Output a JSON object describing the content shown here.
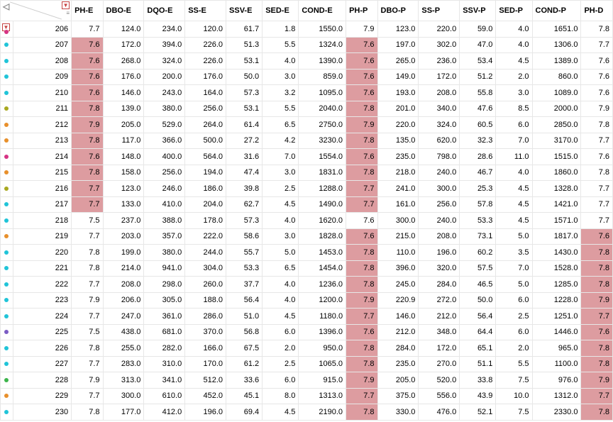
{
  "columns": [
    "PH-E",
    "DBO-E",
    "DQO-E",
    "SS-E",
    "SSV-E",
    "SED-E",
    "COND-E",
    "PH-P",
    "DBO-P",
    "SS-P",
    "SSV-P",
    "SED-P",
    "COND-P",
    "PH-D"
  ],
  "colWidths": {
    "marker": 16,
    "rowid": 74,
    "PH-E": 40,
    "DBO-E": 52,
    "DQO-E": 52,
    "SS-E": 52,
    "SSV-E": 46,
    "SED-E": 46,
    "COND-E": 60,
    "PH-P": 40,
    "DBO-P": 52,
    "SS-P": 52,
    "SSV-P": 46,
    "SED-P": 46,
    "COND-P": 62,
    "PH-D": 40
  },
  "highlightColor": "#dd9ca0",
  "markerColors": {
    "magenta": "#d63384",
    "cyan": "#20c4d8",
    "olive": "#a8a820",
    "orange": "#e8902c",
    "purple": "#7b5cc4",
    "green": "#3cb44b"
  },
  "corner": {
    "backArrowGlyph": "◁",
    "filterGlyph": "▼",
    "barsGlyph": "≡"
  },
  "rows": [
    {
      "id": 206,
      "marker": "magenta",
      "cells": {
        "PH-E": 7.7,
        "DBO-E": 124.0,
        "DQO-E": 234.0,
        "SS-E": 120.0,
        "SSV-E": 61.7,
        "SED-E": 1.8,
        "COND-E": 1550.0,
        "PH-P": 7.9,
        "DBO-P": 123.0,
        "SS-P": 220.0,
        "SSV-P": 59.0,
        "SED-P": 4.0,
        "COND-P": 1651.0,
        "PH-D": 7.8
      },
      "hl": {}
    },
    {
      "id": 207,
      "marker": "cyan",
      "cells": {
        "PH-E": 7.6,
        "DBO-E": 172.0,
        "DQO-E": 394.0,
        "SS-E": 226.0,
        "SSV-E": 51.3,
        "SED-E": 5.5,
        "COND-E": 1324.0,
        "PH-P": 7.6,
        "DBO-P": 197.0,
        "SS-P": 302.0,
        "SSV-P": 47.0,
        "SED-P": 4.0,
        "COND-P": 1306.0,
        "PH-D": 7.7
      },
      "hl": {
        "PH-E": true,
        "PH-P": true
      }
    },
    {
      "id": 208,
      "marker": "cyan",
      "cells": {
        "PH-E": 7.6,
        "DBO-E": 268.0,
        "DQO-E": 324.0,
        "SS-E": 226.0,
        "SSV-E": 53.1,
        "SED-E": 4.0,
        "COND-E": 1390.0,
        "PH-P": 7.6,
        "DBO-P": 265.0,
        "SS-P": 236.0,
        "SSV-P": 53.4,
        "SED-P": 4.5,
        "COND-P": 1389.0,
        "PH-D": 7.6
      },
      "hl": {
        "PH-E": true,
        "PH-P": true
      }
    },
    {
      "id": 209,
      "marker": "cyan",
      "cells": {
        "PH-E": 7.6,
        "DBO-E": 176.0,
        "DQO-E": 200.0,
        "SS-E": 176.0,
        "SSV-E": 50.0,
        "SED-E": 3.0,
        "COND-E": 859.0,
        "PH-P": 7.6,
        "DBO-P": 149.0,
        "SS-P": 172.0,
        "SSV-P": 51.2,
        "SED-P": 2.0,
        "COND-P": 860.0,
        "PH-D": 7.6
      },
      "hl": {
        "PH-E": true,
        "PH-P": true
      }
    },
    {
      "id": 210,
      "marker": "cyan",
      "cells": {
        "PH-E": 7.6,
        "DBO-E": 146.0,
        "DQO-E": 243.0,
        "SS-E": 164.0,
        "SSV-E": 57.3,
        "SED-E": 3.2,
        "COND-E": 1095.0,
        "PH-P": 7.6,
        "DBO-P": 193.0,
        "SS-P": 208.0,
        "SSV-P": 55.8,
        "SED-P": 3.0,
        "COND-P": 1089.0,
        "PH-D": 7.6
      },
      "hl": {
        "PH-E": true,
        "PH-P": true
      }
    },
    {
      "id": 211,
      "marker": "olive",
      "cells": {
        "PH-E": 7.8,
        "DBO-E": 139.0,
        "DQO-E": 380.0,
        "SS-E": 256.0,
        "SSV-E": 53.1,
        "SED-E": 5.5,
        "COND-E": 2040.0,
        "PH-P": 7.8,
        "DBO-P": 201.0,
        "SS-P": 340.0,
        "SSV-P": 47.6,
        "SED-P": 8.5,
        "COND-P": 2000.0,
        "PH-D": 7.9
      },
      "hl": {
        "PH-E": true,
        "PH-P": true
      }
    },
    {
      "id": 212,
      "marker": "orange",
      "cells": {
        "PH-E": 7.9,
        "DBO-E": 205.0,
        "DQO-E": 529.0,
        "SS-E": 264.0,
        "SSV-E": 61.4,
        "SED-E": 6.5,
        "COND-E": 2750.0,
        "PH-P": 7.9,
        "DBO-P": 220.0,
        "SS-P": 324.0,
        "SSV-P": 60.5,
        "SED-P": 6.0,
        "COND-P": 2850.0,
        "PH-D": 7.8
      },
      "hl": {
        "PH-E": true,
        "PH-P": true
      }
    },
    {
      "id": 213,
      "marker": "orange",
      "cells": {
        "PH-E": 7.8,
        "DBO-E": 117.0,
        "DQO-E": 366.0,
        "SS-E": 500.0,
        "SSV-E": 27.2,
        "SED-E": 4.2,
        "COND-E": 3230.0,
        "PH-P": 7.8,
        "DBO-P": 135.0,
        "SS-P": 620.0,
        "SSV-P": 32.3,
        "SED-P": 7.0,
        "COND-P": 3170.0,
        "PH-D": 7.7
      },
      "hl": {
        "PH-E": true,
        "PH-P": true
      }
    },
    {
      "id": 214,
      "marker": "magenta",
      "cells": {
        "PH-E": 7.6,
        "DBO-E": 148.0,
        "DQO-E": 400.0,
        "SS-E": 564.0,
        "SSV-E": 31.6,
        "SED-E": 7.0,
        "COND-E": 1554.0,
        "PH-P": 7.6,
        "DBO-P": 235.0,
        "SS-P": 798.0,
        "SSV-P": 28.6,
        "SED-P": 11.0,
        "COND-P": 1515.0,
        "PH-D": 7.6
      },
      "hl": {
        "PH-E": true,
        "PH-P": true
      }
    },
    {
      "id": 215,
      "marker": "orange",
      "cells": {
        "PH-E": 7.8,
        "DBO-E": 158.0,
        "DQO-E": 256.0,
        "SS-E": 194.0,
        "SSV-E": 47.4,
        "SED-E": 3.0,
        "COND-E": 1831.0,
        "PH-P": 7.8,
        "DBO-P": 218.0,
        "SS-P": 240.0,
        "SSV-P": 46.7,
        "SED-P": 4.0,
        "COND-P": 1860.0,
        "PH-D": 7.8
      },
      "hl": {
        "PH-E": true,
        "PH-P": true
      }
    },
    {
      "id": 216,
      "marker": "olive",
      "cells": {
        "PH-E": 7.7,
        "DBO-E": 123.0,
        "DQO-E": 246.0,
        "SS-E": 186.0,
        "SSV-E": 39.8,
        "SED-E": 2.5,
        "COND-E": 1288.0,
        "PH-P": 7.7,
        "DBO-P": 241.0,
        "SS-P": 300.0,
        "SSV-P": 25.3,
        "SED-P": 4.5,
        "COND-P": 1328.0,
        "PH-D": 7.7
      },
      "hl": {
        "PH-E": true,
        "PH-P": true
      }
    },
    {
      "id": 217,
      "marker": "cyan",
      "cells": {
        "PH-E": 7.7,
        "DBO-E": 133.0,
        "DQO-E": 410.0,
        "SS-E": 204.0,
        "SSV-E": 62.7,
        "SED-E": 4.5,
        "COND-E": 1490.0,
        "PH-P": 7.7,
        "DBO-P": 161.0,
        "SS-P": 256.0,
        "SSV-P": 57.8,
        "SED-P": 4.5,
        "COND-P": 1421.0,
        "PH-D": 7.7
      },
      "hl": {
        "PH-E": true,
        "PH-P": true
      }
    },
    {
      "id": 218,
      "marker": "cyan",
      "cells": {
        "PH-E": 7.5,
        "DBO-E": 237.0,
        "DQO-E": 388.0,
        "SS-E": 178.0,
        "SSV-E": 57.3,
        "SED-E": 4.0,
        "COND-E": 1620.0,
        "PH-P": 7.6,
        "DBO-P": 300.0,
        "SS-P": 240.0,
        "SSV-P": 53.3,
        "SED-P": 4.5,
        "COND-P": 1571.0,
        "PH-D": 7.7
      },
      "hl": {}
    },
    {
      "id": 219,
      "marker": "orange",
      "cells": {
        "PH-E": 7.7,
        "DBO-E": 203.0,
        "DQO-E": 357.0,
        "SS-E": 222.0,
        "SSV-E": 58.6,
        "SED-E": 3.0,
        "COND-E": 1828.0,
        "PH-P": 7.6,
        "DBO-P": 215.0,
        "SS-P": 208.0,
        "SSV-P": 73.1,
        "SED-P": 5.0,
        "COND-P": 1817.0,
        "PH-D": 7.6
      },
      "hl": {
        "PH-P": true,
        "PH-D": true
      }
    },
    {
      "id": 220,
      "marker": "cyan",
      "cells": {
        "PH-E": 7.8,
        "DBO-E": 199.0,
        "DQO-E": 380.0,
        "SS-E": 244.0,
        "SSV-E": 55.7,
        "SED-E": 5.0,
        "COND-E": 1453.0,
        "PH-P": 7.8,
        "DBO-P": 110.0,
        "SS-P": 196.0,
        "SSV-P": 60.2,
        "SED-P": 3.5,
        "COND-P": 1430.0,
        "PH-D": 7.8
      },
      "hl": {
        "PH-P": true,
        "PH-D": true
      }
    },
    {
      "id": 221,
      "marker": "cyan",
      "cells": {
        "PH-E": 7.8,
        "DBO-E": 214.0,
        "DQO-E": 941.0,
        "SS-E": 304.0,
        "SSV-E": 53.3,
        "SED-E": 6.5,
        "COND-E": 1454.0,
        "PH-P": 7.8,
        "DBO-P": 396.0,
        "SS-P": 320.0,
        "SSV-P": 57.5,
        "SED-P": 7.0,
        "COND-P": 1528.0,
        "PH-D": 7.8
      },
      "hl": {
        "PH-P": true,
        "PH-D": true
      }
    },
    {
      "id": 222,
      "marker": "cyan",
      "cells": {
        "PH-E": 7.7,
        "DBO-E": 208.0,
        "DQO-E": 298.0,
        "SS-E": 260.0,
        "SSV-E": 37.7,
        "SED-E": 4.0,
        "COND-E": 1236.0,
        "PH-P": 7.8,
        "DBO-P": 245.0,
        "SS-P": 284.0,
        "SSV-P": 46.5,
        "SED-P": 5.0,
        "COND-P": 1285.0,
        "PH-D": 7.8
      },
      "hl": {
        "PH-P": true,
        "PH-D": true
      }
    },
    {
      "id": 223,
      "marker": "cyan",
      "cells": {
        "PH-E": 7.9,
        "DBO-E": 206.0,
        "DQO-E": 305.0,
        "SS-E": 188.0,
        "SSV-E": 56.4,
        "SED-E": 4.0,
        "COND-E": 1200.0,
        "PH-P": 7.9,
        "DBO-P": 220.9,
        "SS-P": 272.0,
        "SSV-P": 50.0,
        "SED-P": 6.0,
        "COND-P": 1228.0,
        "PH-D": 7.9
      },
      "hl": {
        "PH-P": true,
        "PH-D": true
      }
    },
    {
      "id": 224,
      "marker": "cyan",
      "cells": {
        "PH-E": 7.7,
        "DBO-E": 247.0,
        "DQO-E": 361.0,
        "SS-E": 286.0,
        "SSV-E": 51.0,
        "SED-E": 4.5,
        "COND-E": 1180.0,
        "PH-P": 7.7,
        "DBO-P": 146.0,
        "SS-P": 212.0,
        "SSV-P": 56.4,
        "SED-P": 2.5,
        "COND-P": 1251.0,
        "PH-D": 7.7
      },
      "hl": {
        "PH-P": true,
        "PH-D": true
      }
    },
    {
      "id": 225,
      "marker": "purple",
      "cells": {
        "PH-E": 7.5,
        "DBO-E": 438.0,
        "DQO-E": 681.0,
        "SS-E": 370.0,
        "SSV-E": 56.8,
        "SED-E": 6.0,
        "COND-E": 1396.0,
        "PH-P": 7.6,
        "DBO-P": 212.0,
        "SS-P": 348.0,
        "SSV-P": 64.4,
        "SED-P": 6.0,
        "COND-P": 1446.0,
        "PH-D": 7.6
      },
      "hl": {
        "PH-P": true,
        "PH-D": true
      }
    },
    {
      "id": 226,
      "marker": "cyan",
      "cells": {
        "PH-E": 7.8,
        "DBO-E": 255.0,
        "DQO-E": 282.0,
        "SS-E": 166.0,
        "SSV-E": 67.5,
        "SED-E": 2.0,
        "COND-E": 950.0,
        "PH-P": 7.8,
        "DBO-P": 284.0,
        "SS-P": 172.0,
        "SSV-P": 65.1,
        "SED-P": 2.0,
        "COND-P": 965.0,
        "PH-D": 7.8
      },
      "hl": {
        "PH-P": true,
        "PH-D": true
      }
    },
    {
      "id": 227,
      "marker": "cyan",
      "cells": {
        "PH-E": 7.7,
        "DBO-E": 283.0,
        "DQO-E": 310.0,
        "SS-E": 170.0,
        "SSV-E": 61.2,
        "SED-E": 2.5,
        "COND-E": 1065.0,
        "PH-P": 7.8,
        "DBO-P": 235.0,
        "SS-P": 270.0,
        "SSV-P": 51.1,
        "SED-P": 5.5,
        "COND-P": 1100.0,
        "PH-D": 7.8
      },
      "hl": {
        "PH-P": true,
        "PH-D": true
      }
    },
    {
      "id": 228,
      "marker": "green",
      "cells": {
        "PH-E": 7.9,
        "DBO-E": 313.0,
        "DQO-E": 341.0,
        "SS-E": 512.0,
        "SSV-E": 33.6,
        "SED-E": 6.0,
        "COND-E": 915.0,
        "PH-P": 7.9,
        "DBO-P": 205.0,
        "SS-P": 520.0,
        "SSV-P": 33.8,
        "SED-P": 7.5,
        "COND-P": 976.0,
        "PH-D": 7.9
      },
      "hl": {
        "PH-P": true,
        "PH-D": true
      }
    },
    {
      "id": 229,
      "marker": "orange",
      "cells": {
        "PH-E": 7.7,
        "DBO-E": 300.0,
        "DQO-E": 610.0,
        "SS-E": 452.0,
        "SSV-E": 45.1,
        "SED-E": 8.0,
        "COND-E": 1313.0,
        "PH-P": 7.7,
        "DBO-P": 375.0,
        "SS-P": 556.0,
        "SSV-P": 43.9,
        "SED-P": 10.0,
        "COND-P": 1312.0,
        "PH-D": 7.7
      },
      "hl": {
        "PH-P": true,
        "PH-D": true
      }
    },
    {
      "id": 230,
      "marker": "cyan",
      "cells": {
        "PH-E": 7.8,
        "DBO-E": 177.0,
        "DQO-E": 412.0,
        "SS-E": 196.0,
        "SSV-E": 69.4,
        "SED-E": 4.5,
        "COND-E": 2190.0,
        "PH-P": 7.8,
        "DBO-P": 330.0,
        "SS-P": 476.0,
        "SSV-P": 52.1,
        "SED-P": 7.5,
        "COND-P": 2330.0,
        "PH-D": 7.8
      },
      "hl": {
        "PH-P": true,
        "PH-D": true
      }
    }
  ]
}
